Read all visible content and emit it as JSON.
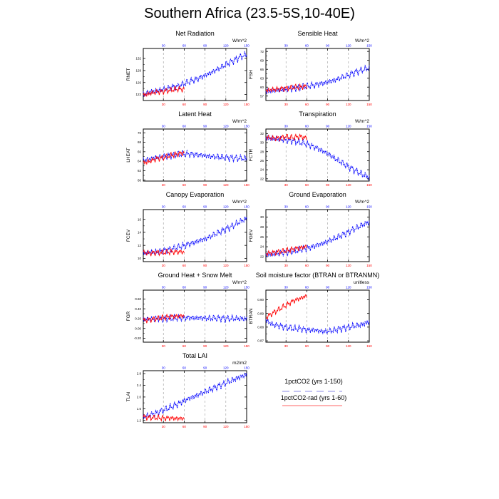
{
  "page": {
    "title": "Southern Africa (23.5-5S,10-40E)"
  },
  "legend": {
    "series": [
      {
        "name": "1pctCO2 (yrs 1-150)",
        "color": "#0000ff",
        "dashed": true
      },
      {
        "name": "1pctCO2-rad (yrs 1-60)",
        "color": "#ff0000",
        "dashed": false
      }
    ]
  },
  "colors": {
    "series_a": "#0000ff",
    "series_b": "#ff0000",
    "grid": "#999999"
  },
  "chart_data": [
    {
      "type": "line",
      "title": "Net Radiation",
      "ylabel": "RNET",
      "units": "W/m^2",
      "xlim": [
        1,
        150
      ],
      "xticks_bottom": [
        30,
        60,
        90,
        120,
        150
      ],
      "xticks_top": [
        30,
        60,
        90,
        120,
        150
      ],
      "ylim": [
        121.5,
        134.5
      ],
      "yticks": [
        123,
        126,
        129,
        132
      ],
      "grid": "vertical dashed",
      "series": [
        {
          "name": "1pctCO2 (yrs 1-150)",
          "x": [
            1,
            10,
            20,
            30,
            40,
            50,
            60,
            70,
            80,
            90,
            100,
            110,
            120,
            130,
            140,
            150
          ],
          "y": [
            123.0,
            123.6,
            123.9,
            124.3,
            124.8,
            125.0,
            125.7,
            126.4,
            127.0,
            127.8,
            128.6,
            129.5,
            130.5,
            131.4,
            132.3,
            133.0
          ]
        },
        {
          "name": "1pctCO2-rad (yrs 1-60)",
          "x": [
            1,
            10,
            20,
            30,
            40,
            50,
            60
          ],
          "y": [
            122.8,
            123.3,
            123.6,
            123.8,
            124.1,
            124.4,
            124.3
          ]
        }
      ]
    },
    {
      "type": "line",
      "title": "Sensible Heat",
      "ylabel": "FSH",
      "units": "W/m^2",
      "xlim": [
        1,
        150
      ],
      "xticks_bottom": [
        30,
        60,
        90,
        120,
        150
      ],
      "xticks_top": [
        30,
        60,
        90,
        120,
        150
      ],
      "ylim": [
        55.5,
        73.0
      ],
      "yticks": [
        57.0,
        60.0,
        63.0,
        66.0,
        69.0,
        72.0
      ],
      "grid": "vertical dashed",
      "series": [
        {
          "name": "1pctCO2 (yrs 1-150)",
          "x": [
            1,
            10,
            20,
            30,
            40,
            50,
            60,
            70,
            80,
            90,
            100,
            110,
            120,
            130,
            140,
            150
          ],
          "y": [
            58.5,
            58.8,
            59.0,
            59.3,
            59.6,
            60.0,
            60.3,
            60.7,
            61.2,
            61.8,
            62.4,
            63.2,
            64.1,
            65.0,
            65.8,
            66.4
          ]
        },
        {
          "name": "1pctCO2-rad (yrs 1-60)",
          "x": [
            1,
            10,
            20,
            30,
            40,
            50,
            60
          ],
          "y": [
            58.8,
            59.2,
            59.4,
            59.6,
            59.9,
            60.1,
            60.3
          ]
        }
      ]
    },
    {
      "type": "line",
      "title": "Latent Heat",
      "ylabel": "LHEAT",
      "units": "W/m^2",
      "xlim": [
        1,
        150
      ],
      "xticks_bottom": [
        30,
        60,
        90,
        120,
        150
      ],
      "xticks_top": [
        30,
        60,
        90,
        120,
        150
      ],
      "ylim": [
        59.8,
        70.8
      ],
      "yticks": [
        60.0,
        62.0,
        64.0,
        66.0,
        68.0,
        70.0
      ],
      "grid": "vertical dashed",
      "series": [
        {
          "name": "1pctCO2 (yrs 1-150)",
          "x": [
            1,
            10,
            20,
            30,
            40,
            50,
            60,
            70,
            80,
            90,
            100,
            110,
            120,
            130,
            140,
            150
          ],
          "y": [
            64.2,
            64.4,
            64.8,
            65.0,
            65.2,
            65.4,
            65.6,
            65.5,
            65.4,
            65.2,
            65.0,
            64.9,
            64.8,
            64.7,
            64.6,
            64.6
          ]
        },
        {
          "name": "1pctCO2-rad (yrs 1-60)",
          "x": [
            1,
            10,
            20,
            30,
            40,
            50,
            60
          ],
          "y": [
            63.6,
            64.0,
            64.5,
            64.8,
            65.2,
            65.5,
            65.8
          ]
        }
      ]
    },
    {
      "type": "line",
      "title": "Transpiration",
      "ylabel": "FCTR",
      "units": "W/m^2",
      "xlim": [
        1,
        150
      ],
      "xticks_bottom": [
        30,
        60,
        90,
        120,
        150
      ],
      "xticks_top": [
        30,
        60,
        90,
        120,
        150
      ],
      "ylim": [
        21.5,
        33.0
      ],
      "yticks": [
        22.0,
        24.0,
        26.0,
        28.0,
        30.0,
        32.0
      ],
      "grid": "vertical dashed",
      "series": [
        {
          "name": "1pctCO2 (yrs 1-150)",
          "x": [
            1,
            10,
            20,
            30,
            40,
            50,
            60,
            70,
            80,
            90,
            100,
            110,
            120,
            130,
            140,
            150
          ],
          "y": [
            31.0,
            30.9,
            30.7,
            30.6,
            30.4,
            30.1,
            29.7,
            29.1,
            28.4,
            27.6,
            26.6,
            25.6,
            24.7,
            23.8,
            23.0,
            22.3
          ]
        },
        {
          "name": "1pctCO2-rad (yrs 1-60)",
          "x": [
            1,
            10,
            20,
            30,
            40,
            50,
            60
          ],
          "y": [
            31.2,
            31.0,
            31.0,
            31.3,
            31.1,
            31.4,
            31.0
          ]
        }
      ]
    },
    {
      "type": "line",
      "title": "Canopy Evaporation",
      "ylabel": "FCEV",
      "units": "W/m^2",
      "xlim": [
        1,
        150
      ],
      "xticks_bottom": [
        30,
        60,
        90,
        120,
        150
      ],
      "xticks_top": [
        30,
        60,
        90,
        120,
        150
      ],
      "ylim": [
        9.5,
        17.5
      ],
      "yticks": [
        10,
        12,
        14,
        16
      ],
      "grid": "vertical dashed",
      "series": [
        {
          "name": "1pctCO2 (yrs 1-150)",
          "x": [
            1,
            10,
            20,
            30,
            40,
            50,
            60,
            70,
            80,
            90,
            100,
            110,
            120,
            130,
            140,
            150
          ],
          "y": [
            10.8,
            10.9,
            11.0,
            11.2,
            11.4,
            11.7,
            12.0,
            12.3,
            12.7,
            13.0,
            13.5,
            14.0,
            14.5,
            15.0,
            15.6,
            16.2
          ]
        },
        {
          "name": "1pctCO2-rad (yrs 1-60)",
          "x": [
            1,
            10,
            20,
            30,
            40,
            50,
            60
          ],
          "y": [
            10.9,
            10.8,
            10.9,
            10.9,
            11.0,
            11.0,
            11.0
          ]
        }
      ]
    },
    {
      "type": "line",
      "title": "Ground Evaporation",
      "ylabel": "FGEV",
      "units": "W/m^2",
      "xlim": [
        1,
        150
      ],
      "xticks_bottom": [
        30,
        60,
        90,
        120,
        150
      ],
      "xticks_top": [
        30,
        60,
        90,
        120,
        150
      ],
      "ylim": [
        21.0,
        31.5
      ],
      "yticks": [
        22.0,
        24.0,
        26.0,
        28.0,
        30.0
      ],
      "grid": "vertical dashed",
      "series": [
        {
          "name": "1pctCO2 (yrs 1-150)",
          "x": [
            1,
            10,
            20,
            30,
            40,
            50,
            60,
            70,
            80,
            90,
            100,
            110,
            120,
            130,
            140,
            150
          ],
          "y": [
            22.4,
            22.5,
            22.7,
            22.9,
            23.1,
            23.4,
            23.7,
            24.1,
            24.6,
            25.1,
            25.7,
            26.3,
            27.0,
            27.7,
            28.4,
            29.0
          ]
        },
        {
          "name": "1pctCO2-rad (yrs 1-60)",
          "x": [
            1,
            10,
            20,
            30,
            40,
            50,
            60
          ],
          "y": [
            22.6,
            22.8,
            23.0,
            23.2,
            23.5,
            23.8,
            24.1
          ]
        }
      ]
    },
    {
      "type": "line",
      "title": "Ground Heat + Snow Melt",
      "ylabel": "FGR",
      "units": "W/m^2",
      "xlim": [
        1,
        150
      ],
      "xticks_bottom": [
        30,
        60,
        90,
        120,
        150
      ],
      "xticks_top": [
        30,
        60,
        90,
        120,
        150
      ],
      "ylim": [
        -0.28,
        0.78
      ],
      "yticks": [
        -0.2,
        0.0,
        0.2,
        0.4,
        0.6
      ],
      "grid": "vertical dashed",
      "series": [
        {
          "name": "1pctCO2 (yrs 1-150)",
          "x": [
            1,
            10,
            20,
            30,
            40,
            50,
            60,
            70,
            80,
            90,
            100,
            110,
            120,
            130,
            140,
            150
          ],
          "y": [
            0.18,
            0.19,
            0.2,
            0.2,
            0.21,
            0.21,
            0.22,
            0.22,
            0.22,
            0.21,
            0.21,
            0.21,
            0.2,
            0.2,
            0.2,
            0.2
          ]
        },
        {
          "name": "1pctCO2-rad (yrs 1-60)",
          "x": [
            1,
            10,
            20,
            30,
            40,
            50,
            60
          ],
          "y": [
            0.16,
            0.18,
            0.2,
            0.22,
            0.24,
            0.25,
            0.26
          ]
        }
      ]
    },
    {
      "type": "line",
      "title": "Soil moisture factor (BTRAN or BTRANMN)",
      "ylabel": "BTRAN",
      "units": "unitless",
      "xlim": [
        1,
        150
      ],
      "xticks_bottom": [
        30,
        60,
        90,
        120,
        150
      ],
      "xticks_top": [
        30,
        60,
        90,
        120,
        150
      ],
      "ylim": [
        0.869,
        0.907
      ],
      "yticks": [
        0.87,
        0.88,
        0.89,
        0.9
      ],
      "grid": "vertical dashed",
      "series": [
        {
          "name": "1pctCO2 (yrs 1-150)",
          "x": [
            1,
            10,
            20,
            30,
            40,
            50,
            60,
            70,
            80,
            90,
            100,
            110,
            120,
            130,
            140,
            150
          ],
          "y": [
            0.885,
            0.882,
            0.881,
            0.88,
            0.879,
            0.879,
            0.878,
            0.878,
            0.877,
            0.877,
            0.878,
            0.879,
            0.88,
            0.881,
            0.882,
            0.884
          ]
        },
        {
          "name": "1pctCO2-rad (yrs 1-60)",
          "x": [
            1,
            10,
            20,
            30,
            40,
            50,
            60
          ],
          "y": [
            0.887,
            0.89,
            0.893,
            0.896,
            0.899,
            0.901,
            0.903
          ]
        }
      ]
    },
    {
      "type": "line",
      "title": "Total LAI",
      "ylabel": "TLAI",
      "units": "m2/m2",
      "xlim": [
        1,
        150
      ],
      "xticks_bottom": [
        30,
        60,
        90,
        120,
        150
      ],
      "xticks_top": [
        30,
        60,
        90,
        120,
        150
      ],
      "ylim": [
        1.12,
        2.9
      ],
      "yticks": [
        1.2,
        1.6,
        2.0,
        2.4,
        2.8
      ],
      "grid": "vertical dashed",
      "series": [
        {
          "name": "1pctCO2 (yrs 1-150)",
          "x": [
            1,
            10,
            20,
            30,
            40,
            50,
            60,
            70,
            80,
            90,
            100,
            110,
            120,
            130,
            140,
            150
          ],
          "y": [
            1.32,
            1.38,
            1.46,
            1.55,
            1.65,
            1.75,
            1.88,
            1.98,
            2.08,
            2.18,
            2.28,
            2.38,
            2.48,
            2.58,
            2.68,
            2.78
          ]
        },
        {
          "name": "1pctCO2-rad (yrs 1-60)",
          "x": [
            1,
            10,
            20,
            30,
            40,
            50,
            60
          ],
          "y": [
            1.32,
            1.3,
            1.29,
            1.28,
            1.28,
            1.27,
            1.27
          ]
        }
      ]
    }
  ]
}
